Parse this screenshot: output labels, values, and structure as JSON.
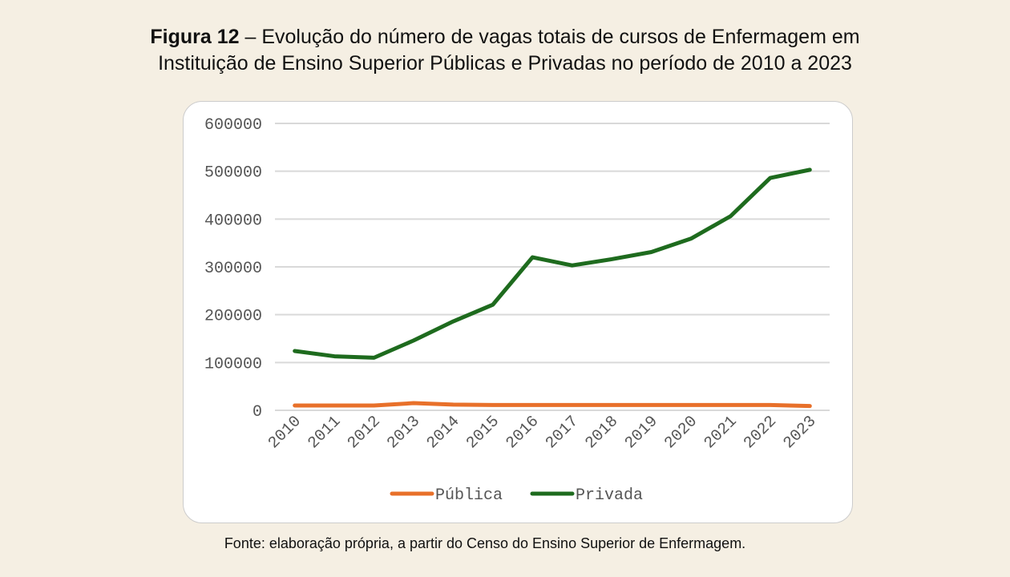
{
  "figure": {
    "label": "Figura 12",
    "title_line1": " – Evolução do número de vagas totais de cursos de Enfermagem em",
    "title_line2": "Instituição de Ensino Superior Públicas e Privadas no período de 2010 a 2023",
    "source": "Fonte:  elaboração própria, a partir do Censo do Ensino Superior de Enfermagem."
  },
  "chart_data": {
    "type": "line",
    "title": "Evolução do número de vagas totais de cursos de Enfermagem",
    "x": [
      "2010",
      "2011",
      "2012",
      "2013",
      "2014",
      "2015",
      "2016",
      "2017",
      "2018",
      "2019",
      "2020",
      "2021",
      "2022",
      "2023"
    ],
    "yticks": [
      "0",
      "100000",
      "200000",
      "300000",
      "400000",
      "500000",
      "600000"
    ],
    "ylim": [
      0,
      600000
    ],
    "grid": true,
    "legend": "bottom",
    "series": [
      {
        "name": "Pública",
        "color": "#e8702a",
        "values": [
          10000,
          10000,
          10000,
          15000,
          12000,
          11000,
          11000,
          11000,
          11000,
          11000,
          11000,
          11000,
          11000,
          9000
        ]
      },
      {
        "name": "Privada",
        "color": "#1e6b1e",
        "values": [
          124000,
          113000,
          110000,
          146000,
          186000,
          221000,
          320000,
          303000,
          316000,
          331000,
          359000,
          406000,
          486000,
          503000
        ]
      }
    ]
  }
}
